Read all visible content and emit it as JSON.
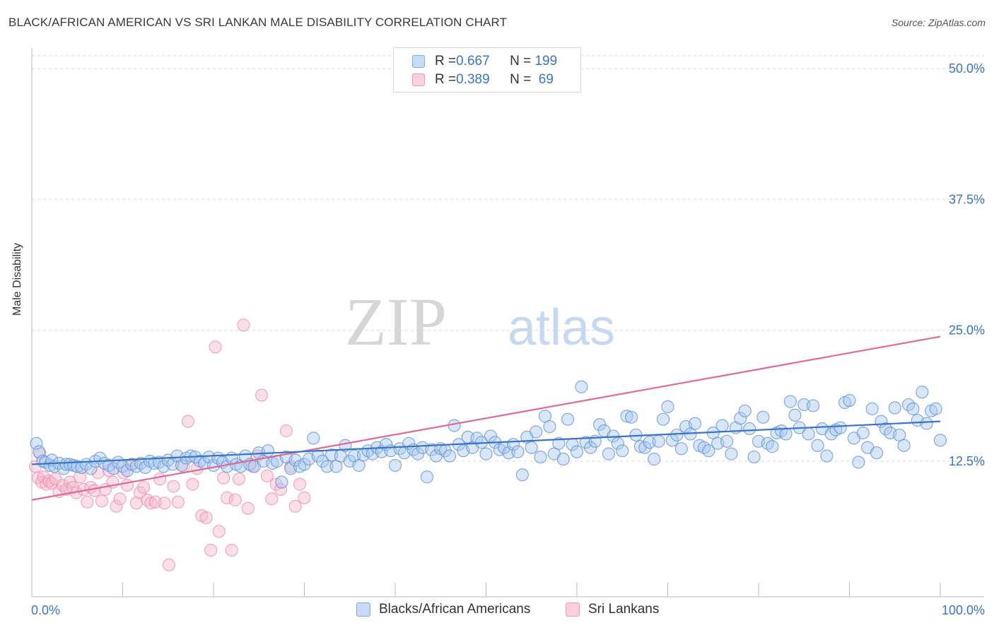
{
  "title": "BLACK/AFRICAN AMERICAN VS SRI LANKAN MALE DISABILITY CORRELATION CHART",
  "source": "Source: ZipAtlas.com",
  "watermark": {
    "zip": "ZIP",
    "atlas": "atlas"
  },
  "colors": {
    "blue": "#3a74c7",
    "blue_fill": "#a9c8f0",
    "pink": "#e06a94",
    "pink_fill": "#f5b8cb",
    "axis_label": "#3a74c7",
    "grid": "#d9d9d9"
  },
  "legend": {
    "rows": [
      {
        "r_label": "R = ",
        "r_value": "0.667",
        "n_label": "N = ",
        "n_value": "199"
      },
      {
        "r_label": "R = ",
        "r_value": "0.389",
        "n_label": "N = ",
        "n_value": " 69"
      }
    ]
  },
  "bottom_legend": [
    "Blacks/African Americans",
    "Sri Lankans"
  ],
  "chart_data": {
    "type": "scatter",
    "title": "BLACK/AFRICAN AMERICAN VS SRI LANKAN MALE DISABILITY CORRELATION CHART",
    "xlabel": "",
    "ylabel": "Male Disability",
    "xlim": [
      0,
      100
    ],
    "ylim": [
      0,
      50
    ],
    "x_tick_labels": [
      "0.0%",
      "100.0%"
    ],
    "y_ticks": [
      12.5,
      25.0,
      37.5,
      50.0
    ],
    "y_tick_labels": [
      "12.5%",
      "25.0%",
      "37.5%",
      "50.0%"
    ],
    "grid": "horizontal dashed",
    "legend_position": "top-center",
    "series": [
      {
        "name": "Blacks/African Americans",
        "R": 0.667,
        "N": 199,
        "trend": {
          "x": [
            0,
            100
          ],
          "y": [
            12.2,
            16.3
          ]
        },
        "points": [
          [
            0.5,
            14.2
          ],
          [
            0.8,
            13.4
          ],
          [
            1.2,
            12.5
          ],
          [
            1.5,
            12.4
          ],
          [
            2,
            12.1
          ],
          [
            2.2,
            12.6
          ],
          [
            2.5,
            12.0
          ],
          [
            3,
            12.3
          ],
          [
            3.5,
            11.8
          ],
          [
            3.8,
            12.2
          ],
          [
            4.2,
            12.2
          ],
          [
            4.6,
            12.1
          ],
          [
            5,
            12.0
          ],
          [
            5.5,
            11.9
          ],
          [
            6,
            12.2
          ],
          [
            6.5,
            11.8
          ],
          [
            7,
            12.5
          ],
          [
            7.5,
            12.8
          ],
          [
            8,
            12.3
          ],
          [
            8.5,
            12.1
          ],
          [
            9,
            11.8
          ],
          [
            9.5,
            12.4
          ],
          [
            10,
            12.0
          ],
          [
            10.5,
            11.6
          ],
          [
            11,
            12.2
          ],
          [
            11.5,
            12.0
          ],
          [
            12,
            12.3
          ],
          [
            12.5,
            11.9
          ],
          [
            13,
            12.5
          ],
          [
            13.5,
            12.3
          ],
          [
            14,
            12.4
          ],
          [
            14.5,
            12.0
          ],
          [
            15,
            12.6
          ],
          [
            15.5,
            12.2
          ],
          [
            16,
            13.0
          ],
          [
            16.5,
            12.1
          ],
          [
            17,
            12.8
          ],
          [
            17.5,
            13.0
          ],
          [
            18,
            12.9
          ],
          [
            18.5,
            12.5
          ],
          [
            19,
            12.3
          ],
          [
            19.5,
            12.9
          ],
          [
            20,
            12.1
          ],
          [
            20.5,
            12.8
          ],
          [
            21,
            12.4
          ],
          [
            21.5,
            12.0
          ],
          [
            22,
            12.8
          ],
          [
            22.5,
            12.2
          ],
          [
            23,
            12.0
          ],
          [
            23.5,
            13.0
          ],
          [
            24,
            12.2
          ],
          [
            24.5,
            12.0
          ],
          [
            25,
            13.3
          ],
          [
            25.5,
            12.5
          ],
          [
            26,
            13.5
          ],
          [
            26.5,
            12.3
          ],
          [
            27,
            12.5
          ],
          [
            27.5,
            10.5
          ],
          [
            28,
            12.9
          ],
          [
            28.5,
            11.8
          ],
          [
            29,
            12.6
          ],
          [
            29.5,
            12.0
          ],
          [
            30,
            12.2
          ],
          [
            30.5,
            12.7
          ],
          [
            31,
            14.7
          ],
          [
            31.5,
            13.0
          ],
          [
            32,
            12.5
          ],
          [
            32.5,
            12.0
          ],
          [
            33,
            13.1
          ],
          [
            33.5,
            12.0
          ],
          [
            34,
            13.0
          ],
          [
            34.5,
            14.0
          ],
          [
            35,
            12.5
          ],
          [
            35.5,
            13.0
          ],
          [
            36,
            12.1
          ],
          [
            36.5,
            13.1
          ],
          [
            37,
            13.5
          ],
          [
            37.5,
            13.2
          ],
          [
            38,
            13.8
          ],
          [
            38.5,
            13.4
          ],
          [
            39,
            14.1
          ],
          [
            39.5,
            13.5
          ],
          [
            40,
            12.1
          ],
          [
            40.5,
            13.7
          ],
          [
            41,
            13.3
          ],
          [
            41.5,
            14.2
          ],
          [
            42,
            13.6
          ],
          [
            42.5,
            13.2
          ],
          [
            43,
            13.8
          ],
          [
            43.5,
            11.0
          ],
          [
            44,
            13.6
          ],
          [
            44.5,
            13.0
          ],
          [
            45,
            13.7
          ],
          [
            45.5,
            13.5
          ],
          [
            46,
            13.0
          ],
          [
            46.5,
            15.9
          ],
          [
            47,
            14.1
          ],
          [
            47.5,
            13.5
          ],
          [
            48,
            14.8
          ],
          [
            48.5,
            13.8
          ],
          [
            49,
            14.7
          ],
          [
            49.5,
            14.3
          ],
          [
            50,
            13.2
          ],
          [
            50.5,
            14.9
          ],
          [
            51,
            14.3
          ],
          [
            51.5,
            13.6
          ],
          [
            52,
            13.8
          ],
          [
            52.5,
            13.3
          ],
          [
            53,
            14.1
          ],
          [
            53.5,
            13.4
          ],
          [
            54,
            11.2
          ],
          [
            54.5,
            14.8
          ],
          [
            55,
            13.8
          ],
          [
            55.5,
            15.3
          ],
          [
            56,
            12.9
          ],
          [
            56.5,
            16.8
          ],
          [
            57,
            15.8
          ],
          [
            57.5,
            13.2
          ],
          [
            58,
            14.2
          ],
          [
            58.5,
            12.7
          ],
          [
            59,
            16.5
          ],
          [
            59.5,
            14.1
          ],
          [
            60,
            13.4
          ],
          [
            60.5,
            19.6
          ],
          [
            61,
            14.3
          ],
          [
            61.5,
            13.8
          ],
          [
            62,
            14.4
          ],
          [
            62.5,
            16.0
          ],
          [
            63,
            15.4
          ],
          [
            63.5,
            13.2
          ],
          [
            64,
            14.9
          ],
          [
            64.5,
            14.2
          ],
          [
            65,
            13.5
          ],
          [
            65.5,
            16.8
          ],
          [
            66,
            16.7
          ],
          [
            66.5,
            15.0
          ],
          [
            67,
            13.9
          ],
          [
            67.5,
            13.8
          ],
          [
            68,
            14.3
          ],
          [
            68.5,
            12.7
          ],
          [
            69,
            14.4
          ],
          [
            69.5,
            16.5
          ],
          [
            70,
            17.7
          ],
          [
            70.5,
            14.5
          ],
          [
            71,
            15.0
          ],
          [
            71.5,
            13.7
          ],
          [
            72,
            15.8
          ],
          [
            72.5,
            15.1
          ],
          [
            73,
            16.1
          ],
          [
            73.5,
            14.0
          ],
          [
            74,
            13.8
          ],
          [
            74.5,
            13.5
          ],
          [
            75,
            15.2
          ],
          [
            75.5,
            14.2
          ],
          [
            76,
            15.9
          ],
          [
            76.5,
            14.4
          ],
          [
            77,
            13.2
          ],
          [
            77.5,
            15.7
          ],
          [
            78,
            16.6
          ],
          [
            78.5,
            17.3
          ],
          [
            79,
            15.6
          ],
          [
            79.5,
            12.9
          ],
          [
            80,
            14.4
          ],
          [
            80.5,
            16.7
          ],
          [
            81,
            14.2
          ],
          [
            81.5,
            13.9
          ],
          [
            82,
            15.2
          ],
          [
            82.5,
            15.4
          ],
          [
            83,
            15.1
          ],
          [
            83.5,
            18.2
          ],
          [
            84,
            16.9
          ],
          [
            84.5,
            15.7
          ],
          [
            85,
            17.9
          ],
          [
            85.5,
            15.1
          ],
          [
            86,
            17.8
          ],
          [
            86.5,
            14.0
          ],
          [
            87,
            15.6
          ],
          [
            87.5,
            13.0
          ],
          [
            88,
            15.1
          ],
          [
            88.5,
            15.5
          ],
          [
            89,
            15.7
          ],
          [
            89.5,
            18.1
          ],
          [
            90,
            18.3
          ],
          [
            90.5,
            14.7
          ],
          [
            91,
            12.4
          ],
          [
            91.5,
            15.2
          ],
          [
            92,
            13.8
          ],
          [
            92.5,
            17.5
          ],
          [
            93,
            13.3
          ],
          [
            93.5,
            16.3
          ],
          [
            94,
            15.6
          ],
          [
            94.5,
            15.2
          ],
          [
            95,
            17.6
          ],
          [
            95.5,
            15.0
          ],
          [
            96,
            14.0
          ],
          [
            96.5,
            17.9
          ],
          [
            97,
            17.5
          ],
          [
            97.5,
            16.4
          ],
          [
            98,
            19.1
          ],
          [
            98.5,
            16.1
          ],
          [
            99,
            17.3
          ],
          [
            99.5,
            17.5
          ],
          [
            100,
            14.5
          ]
        ]
      },
      {
        "name": "Sri Lankans",
        "R": 0.389,
        "N": 69,
        "trend": {
          "x": [
            0,
            100
          ],
          "y": [
            8.8,
            24.4
          ]
        },
        "points": [
          [
            0.4,
            12.0
          ],
          [
            0.7,
            10.9
          ],
          [
            0.9,
            13.2
          ],
          [
            1.1,
            10.5
          ],
          [
            1.3,
            11.0
          ],
          [
            1.6,
            10.3
          ],
          [
            1.9,
            10.6
          ],
          [
            2.2,
            10.4
          ],
          [
            2.6,
            10.8
          ],
          [
            3,
            9.6
          ],
          [
            3.4,
            10.2
          ],
          [
            3.8,
            9.8
          ],
          [
            4.2,
            10.5
          ],
          [
            4.5,
            10.0
          ],
          [
            4.9,
            9.5
          ],
          [
            5.3,
            11.0
          ],
          [
            5.7,
            9.8
          ],
          [
            6.1,
            8.6
          ],
          [
            6.5,
            10.0
          ],
          [
            6.9,
            9.7
          ],
          [
            7.3,
            11.4
          ],
          [
            7.7,
            8.7
          ],
          [
            8.1,
            9.8
          ],
          [
            8.5,
            11.6
          ],
          [
            8.9,
            10.5
          ],
          [
            9.3,
            8.2
          ],
          [
            9.7,
            8.9
          ],
          [
            10.1,
            11.4
          ],
          [
            10.5,
            10.2
          ],
          [
            11,
            12.2
          ],
          [
            11.5,
            8.5
          ],
          [
            11.9,
            9.5
          ],
          [
            12.3,
            10.0
          ],
          [
            12.7,
            8.8
          ],
          [
            13.1,
            8.5
          ],
          [
            13.6,
            8.6
          ],
          [
            14.1,
            10.8
          ],
          [
            14.6,
            8.5
          ],
          [
            15.1,
            2.6
          ],
          [
            15.6,
            10.1
          ],
          [
            16.1,
            8.6
          ],
          [
            16.7,
            12.0
          ],
          [
            17.2,
            16.3
          ],
          [
            17.7,
            10.3
          ],
          [
            18.2,
            11.8
          ],
          [
            18.7,
            7.3
          ],
          [
            19.2,
            7.1
          ],
          [
            19.7,
            4.0
          ],
          [
            20.2,
            23.4
          ],
          [
            20.6,
            5.8
          ],
          [
            21.1,
            10.9
          ],
          [
            21.5,
            9.0
          ],
          [
            22,
            4.0
          ],
          [
            22.4,
            8.8
          ],
          [
            22.8,
            10.8
          ],
          [
            23.3,
            25.5
          ],
          [
            23.8,
            8.0
          ],
          [
            24.3,
            12.0
          ],
          [
            24.8,
            13.0
          ],
          [
            25.3,
            18.8
          ],
          [
            25.9,
            11.1
          ],
          [
            26.4,
            8.9
          ],
          [
            26.9,
            10.3
          ],
          [
            27.4,
            9.8
          ],
          [
            28,
            15.4
          ],
          [
            28.5,
            12.0
          ],
          [
            29,
            8.2
          ],
          [
            29.5,
            10.3
          ],
          [
            30,
            9.0
          ]
        ]
      }
    ]
  }
}
